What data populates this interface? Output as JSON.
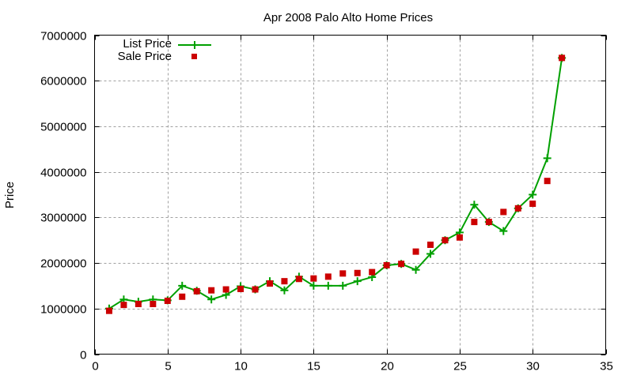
{
  "chart_data": {
    "type": "line",
    "title": "Apr 2008 Palo Alto Home Prices",
    "xlabel": "",
    "ylabel": "Price",
    "xlim": [
      0,
      35
    ],
    "ylim": [
      0,
      7000000
    ],
    "xticks": [
      0,
      5,
      10,
      15,
      20,
      25,
      30,
      35
    ],
    "yticks": [
      0,
      1000000,
      2000000,
      3000000,
      4000000,
      5000000,
      6000000,
      7000000
    ],
    "ytick_labels": [
      "0",
      "1000000",
      "2000000",
      "3000000",
      "4000000",
      "5000000",
      "6000000",
      "7000000"
    ],
    "grid": true,
    "legend_position": "top-left",
    "x": [
      1,
      2,
      3,
      4,
      5,
      6,
      7,
      8,
      9,
      10,
      11,
      12,
      13,
      14,
      15,
      16,
      17,
      18,
      19,
      20,
      21,
      22,
      23,
      24,
      25,
      26,
      27,
      28,
      29,
      30,
      31,
      32
    ],
    "series": [
      {
        "name": "List Price",
        "style": "linespoints",
        "marker": "plus",
        "color": "#00a000",
        "values": [
          1000000,
          1200000,
          1150000,
          1200000,
          1180000,
          1500000,
          1390000,
          1200000,
          1300000,
          1490000,
          1420000,
          1600000,
          1400000,
          1700000,
          1500000,
          1500000,
          1500000,
          1600000,
          1690000,
          1950000,
          1980000,
          1850000,
          2200000,
          2500000,
          2670000,
          3280000,
          2900000,
          2700000,
          3200000,
          3500000,
          4300000,
          6500000
        ]
      },
      {
        "name": "Sale Price",
        "style": "points",
        "marker": "square",
        "color": "#cc0000",
        "values": [
          950000,
          1080000,
          1100000,
          1100000,
          1170000,
          1260000,
          1380000,
          1400000,
          1420000,
          1430000,
          1420000,
          1550000,
          1600000,
          1650000,
          1660000,
          1700000,
          1770000,
          1780000,
          1800000,
          1950000,
          1980000,
          2250000,
          2400000,
          2500000,
          2560000,
          2900000,
          2900000,
          3120000,
          3200000,
          3300000,
          3800000,
          6500000
        ]
      }
    ]
  }
}
